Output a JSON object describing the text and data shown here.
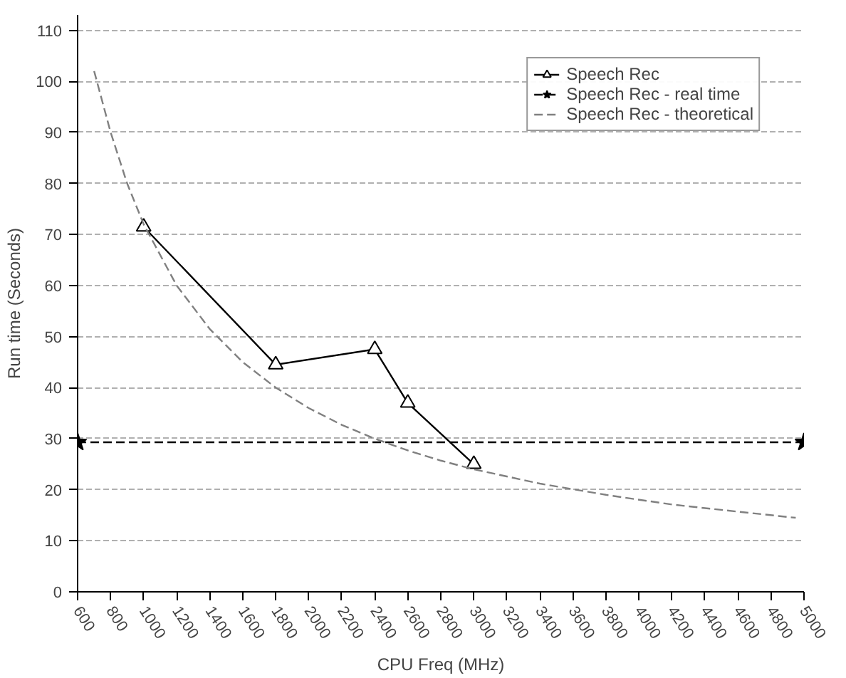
{
  "chart_data": {
    "type": "line",
    "xlabel": "CPU Freq (MHz)",
    "ylabel": "Run time (Seconds)",
    "xlim": [
      600,
      5000
    ],
    "xticks": [
      600,
      800,
      1000,
      1200,
      1400,
      1600,
      1800,
      2000,
      2200,
      2400,
      2600,
      2800,
      3000,
      3200,
      3400,
      3600,
      3800,
      4000,
      4200,
      4400,
      4600,
      4800,
      5000
    ],
    "ylim": [
      0,
      113
    ],
    "yticks": [
      0,
      10,
      20,
      30,
      40,
      50,
      60,
      70,
      80,
      90,
      100,
      110
    ],
    "grid": "y",
    "legend": "top right",
    "series": [
      {
        "name": "Speech Rec",
        "color": "#000000",
        "x": [
          1000,
          1800,
          2400,
          2600,
          3000
        ],
        "values": [
          71.5,
          44.5,
          47.5,
          37,
          25
        ],
        "marker": "triangle",
        "line_style": "solid"
      },
      {
        "name": "Speech Rec - real time",
        "color": "#000000",
        "x": [
          600,
          5000
        ],
        "values": [
          29.3,
          29.3
        ],
        "marker": "star",
        "line_style": "dashed"
      },
      {
        "name": "Speech Rec - theoretical",
        "color": "#808080",
        "x": [
          700,
          800,
          900,
          1000,
          1200,
          1400,
          1600,
          1800,
          2000,
          2200,
          2400,
          2600,
          2800,
          3000,
          3400,
          3800,
          4200,
          4600,
          4950
        ],
        "values": [
          102,
          90,
          80,
          72,
          60,
          51.5,
          45,
          40,
          36,
          32.7,
          30,
          27.7,
          25.7,
          24,
          21.2,
          19,
          17.1,
          15.7,
          14.5
        ],
        "marker": "none",
        "line_style": "dashed"
      }
    ]
  }
}
